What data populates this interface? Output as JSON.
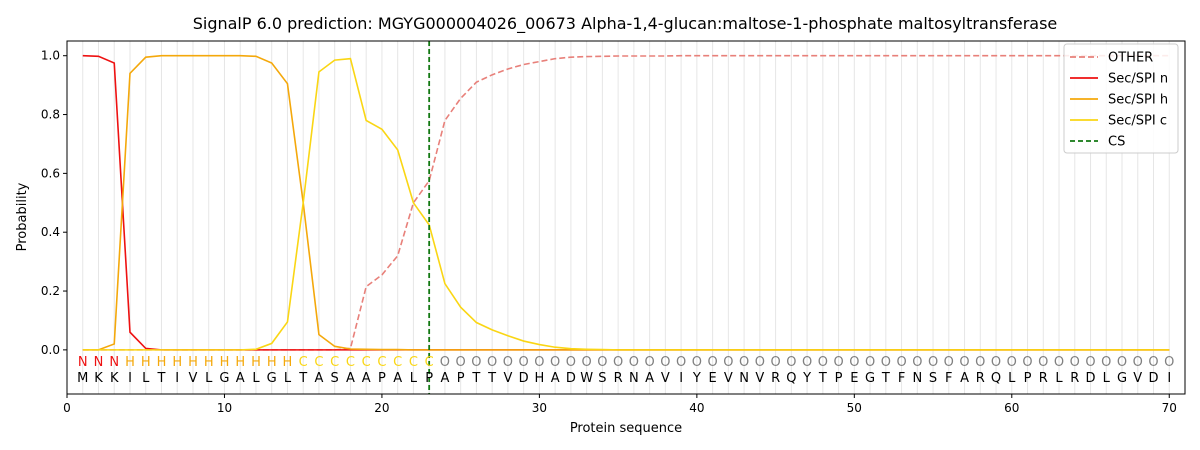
{
  "chart_data": {
    "type": "line",
    "title": "SignalP 6.0 prediction: MGYG000004026_00673 Alpha-1,4-glucan:maltose-1-phosphate maltosyltransferase",
    "xlabel": "Protein sequence",
    "ylabel": "Probability",
    "xlim": [
      0,
      71
    ],
    "ylim": [
      -0.15,
      1.05
    ],
    "xticks": [
      0,
      10,
      20,
      30,
      40,
      50,
      60,
      70
    ],
    "yticks": [
      0.0,
      0.2,
      0.4,
      0.6,
      0.8,
      1.0
    ],
    "ytick_labels": [
      "0.0",
      "0.2",
      "0.4",
      "0.6",
      "0.8",
      "1.0"
    ],
    "grid": "vertical lines at each residue",
    "legend_position": "top-right",
    "colors": {
      "OTHER": "#e8807a",
      "Sec/SPI n": "#ee1111",
      "Sec/SPI h": "#f4a80b",
      "Sec/SPI c": "#fad614",
      "CS": "#127812",
      "O_label": "#808080"
    },
    "x": [
      1,
      2,
      3,
      4,
      5,
      6,
      7,
      8,
      9,
      10,
      11,
      12,
      13,
      14,
      15,
      16,
      17,
      18,
      19,
      20,
      21,
      22,
      23,
      24,
      25,
      26,
      27,
      28,
      29,
      30,
      31,
      32,
      33,
      34,
      35,
      36,
      37,
      38,
      39,
      40,
      41,
      42,
      43,
      44,
      45,
      46,
      47,
      48,
      49,
      50,
      51,
      52,
      53,
      54,
      55,
      56,
      57,
      58,
      59,
      60,
      61,
      62,
      63,
      64,
      65,
      66,
      67,
      68,
      69,
      70
    ],
    "series": [
      {
        "name": "OTHER",
        "style": "dashed",
        "values": [
          0,
          0,
          0,
          0,
          0,
          0,
          0,
          0,
          0,
          0,
          0,
          0,
          0,
          0,
          0,
          0,
          0,
          0.005,
          0.215,
          0.255,
          0.32,
          0.5,
          0.575,
          0.78,
          0.855,
          0.91,
          0.935,
          0.955,
          0.97,
          0.98,
          0.99,
          0.995,
          0.997,
          0.998,
          0.999,
          0.999,
          0.999,
          0.999,
          1,
          1,
          1,
          1,
          1,
          1,
          1,
          1,
          1,
          1,
          1,
          1,
          1,
          1,
          1,
          1,
          1,
          1,
          1,
          1,
          1,
          1,
          1,
          1,
          1,
          1,
          1,
          1,
          1,
          1,
          1,
          1
        ]
      },
      {
        "name": "Sec/SPI n",
        "style": "solid",
        "values": [
          1,
          0.998,
          0.975,
          0.06,
          0.005,
          0,
          0,
          0,
          0,
          0,
          0,
          0,
          0,
          0,
          0,
          0,
          0,
          0,
          0,
          0,
          0,
          0,
          0,
          0,
          0,
          0,
          0,
          0,
          0,
          0,
          0,
          0,
          0,
          0,
          0,
          0,
          0,
          0,
          0,
          0,
          0,
          0,
          0,
          0,
          0,
          0,
          0,
          0,
          0,
          0,
          0,
          0,
          0,
          0,
          0,
          0,
          0,
          0,
          0,
          0,
          0,
          0,
          0,
          0,
          0,
          0,
          0,
          0,
          0,
          0
        ]
      },
      {
        "name": "Sec/SPI h",
        "style": "solid",
        "values": [
          0,
          0,
          0.02,
          0.94,
          0.995,
          1,
          1,
          1,
          1,
          1,
          1,
          0.998,
          0.975,
          0.905,
          0.5,
          0.052,
          0.012,
          0.003,
          0.002,
          0.001,
          0.001,
          0,
          0,
          0,
          0,
          0,
          0,
          0,
          0,
          0,
          0,
          0,
          0,
          0,
          0,
          0,
          0,
          0,
          0,
          0,
          0,
          0,
          0,
          0,
          0,
          0,
          0,
          0,
          0,
          0,
          0,
          0,
          0,
          0,
          0,
          0,
          0,
          0,
          0,
          0,
          0,
          0,
          0,
          0,
          0,
          0,
          0,
          0,
          0,
          0
        ]
      },
      {
        "name": "Sec/SPI c",
        "style": "solid",
        "values": [
          0,
          0,
          0,
          0,
          0,
          0,
          0,
          0,
          0,
          0,
          0,
          0.002,
          0.022,
          0.095,
          0.5,
          0.945,
          0.985,
          0.99,
          0.78,
          0.75,
          0.68,
          0.5,
          0.425,
          0.225,
          0.145,
          0.093,
          0.068,
          0.048,
          0.03,
          0.018,
          0.009,
          0.004,
          0.002,
          0.001,
          0,
          0,
          0,
          0,
          0,
          0,
          0,
          0,
          0,
          0,
          0,
          0,
          0,
          0,
          0,
          0,
          0,
          0,
          0,
          0,
          0,
          0,
          0,
          0,
          0,
          0,
          0,
          0,
          0,
          0,
          0,
          0,
          0,
          0,
          0,
          0
        ]
      }
    ],
    "cs": {
      "name": "CS",
      "x": 23,
      "style": "dashed"
    },
    "sequence": [
      "M",
      "K",
      "K",
      "I",
      "L",
      "T",
      "I",
      "V",
      "L",
      "G",
      "A",
      "L",
      "G",
      "L",
      "T",
      "A",
      "S",
      "A",
      "A",
      "P",
      "A",
      "L",
      "P",
      "A",
      "P",
      "T",
      "T",
      "V",
      "D",
      "H",
      "A",
      "D",
      "W",
      "S",
      "R",
      "N",
      "A",
      "V",
      "I",
      "Y",
      "E",
      "V",
      "N",
      "V",
      "R",
      "Q",
      "Y",
      "T",
      "P",
      "E",
      "G",
      "T",
      "F",
      "N",
      "S",
      "F",
      "A",
      "R",
      "Q",
      "L",
      "P",
      "R",
      "L",
      "R",
      "D",
      "L",
      "G",
      "V",
      "D",
      "I"
    ],
    "labels": [
      "N",
      "N",
      "N",
      "H",
      "H",
      "H",
      "H",
      "H",
      "H",
      "H",
      "H",
      "H",
      "H",
      "H",
      "C",
      "C",
      "C",
      "C",
      "C",
      "C",
      "C",
      "C",
      "C",
      "O",
      "O",
      "O",
      "O",
      "O",
      "O",
      "O",
      "O",
      "O",
      "O",
      "O",
      "O",
      "O",
      "O",
      "O",
      "O",
      "O",
      "O",
      "O",
      "O",
      "O",
      "O",
      "O",
      "O",
      "O",
      "O",
      "O",
      "O",
      "O",
      "O",
      "O",
      "O",
      "O",
      "O",
      "O",
      "O",
      "O",
      "O",
      "O",
      "O",
      "O",
      "O",
      "O",
      "O",
      "O",
      "O",
      "O"
    ]
  }
}
